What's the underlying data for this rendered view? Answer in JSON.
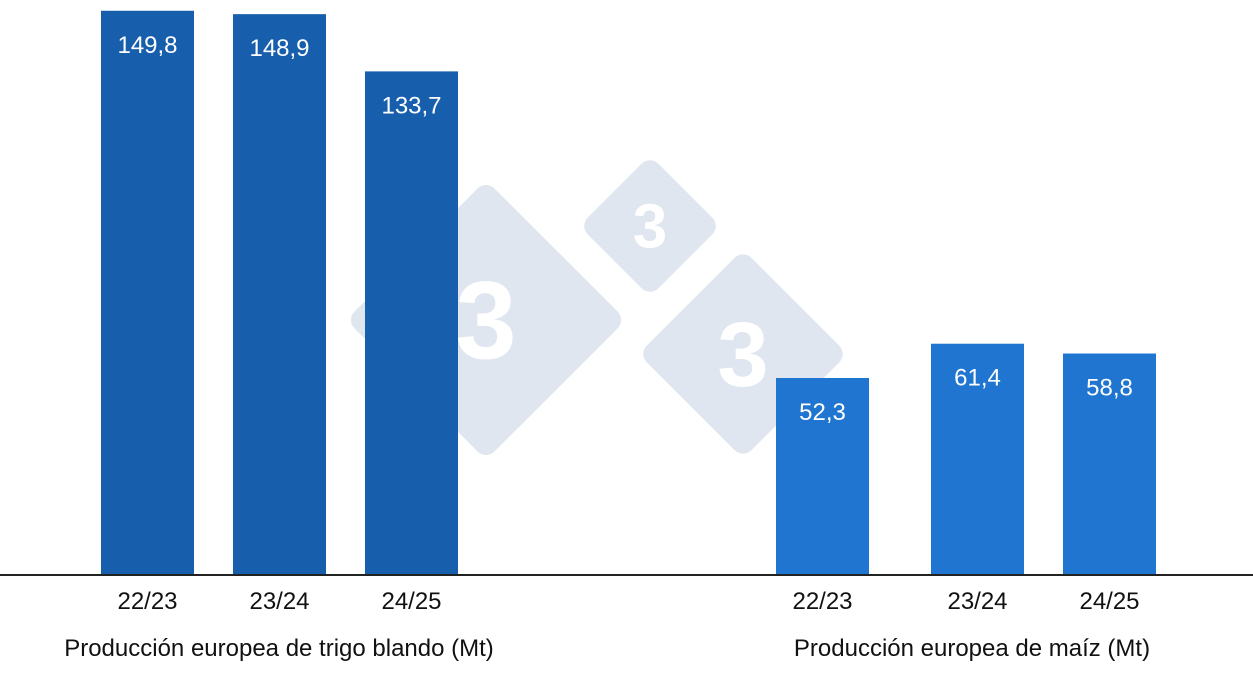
{
  "chart_data": [
    {
      "type": "bar",
      "xlabel": "Producción europea de trigo blando (Mt)",
      "categories": [
        "22/23",
        "23/24",
        "24/25"
      ],
      "values": [
        149.8,
        148.9,
        133.7
      ],
      "value_labels": [
        "149,8",
        "148,9",
        "133,7"
      ],
      "color": "#175fad",
      "ylim": [
        0,
        150
      ]
    },
    {
      "type": "bar",
      "xlabel": "Producción europea de maíz (Mt)",
      "categories": [
        "22/23",
        "23/24",
        "24/25"
      ],
      "values": [
        52.3,
        61.4,
        58.8
      ],
      "value_labels": [
        "52,3",
        "61,4",
        "58,8"
      ],
      "color": "#1f75d0",
      "ylim": [
        0,
        150
      ]
    }
  ],
  "watermark": {
    "icon": "333-logo-icon",
    "digit": "3",
    "color": "#dfe6ef"
  },
  "axis_color": "#222222"
}
